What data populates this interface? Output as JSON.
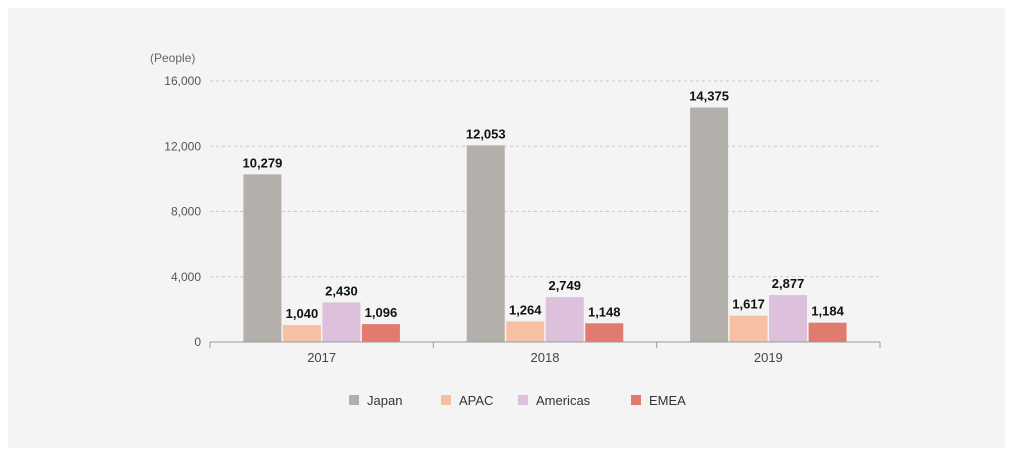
{
  "chart_data": {
    "type": "bar",
    "unit_label": "(People)",
    "categories": [
      "2017",
      "2018",
      "2019"
    ],
    "series": [
      {
        "name": "Japan",
        "values": [
          10279,
          12053,
          14375
        ],
        "labels": [
          "10,279",
          "12,053",
          "14,375"
        ],
        "color": "#b3b0ab"
      },
      {
        "name": "APAC",
        "values": [
          1040,
          1264,
          1617
        ],
        "labels": [
          "1,040",
          "1,264",
          "1,617"
        ],
        "color": "#f6c1a2"
      },
      {
        "name": "Americas",
        "values": [
          2430,
          2749,
          2877
        ],
        "labels": [
          "2,430",
          "2,749",
          "2,877"
        ],
        "color": "#dcc0dc"
      },
      {
        "name": "EMEA",
        "values": [
          1096,
          1148,
          1184
        ],
        "labels": [
          "1,096",
          "1,148",
          "1,184"
        ],
        "color": "#e07b6e"
      }
    ],
    "yticks": [
      0,
      4000,
      8000,
      12000,
      16000
    ],
    "ytick_labels": [
      "0",
      "4,000",
      "8,000",
      "12,000",
      "16,000"
    ],
    "ylim": [
      0,
      16000
    ],
    "grid": true,
    "legend_position": "bottom-center"
  }
}
